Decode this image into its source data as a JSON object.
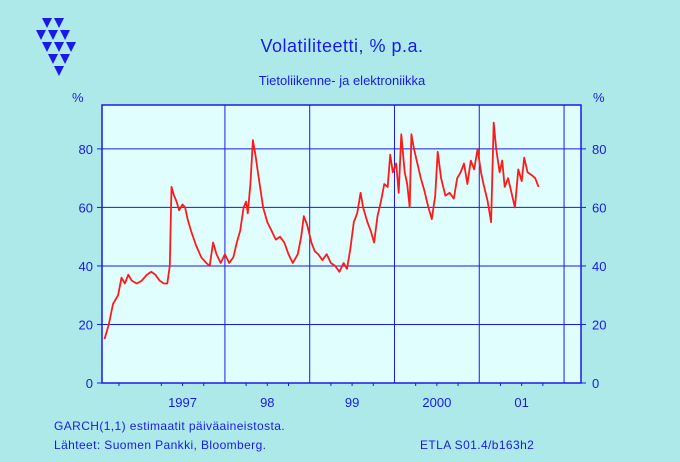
{
  "chart_data": {
    "type": "line",
    "title": "Volatiliteetti,  %  p.a.",
    "subtitle": "Tietoliikenne- ja elektroniikka",
    "y_unit_left": "%",
    "y_unit_right": "%",
    "ylim": [
      0,
      95
    ],
    "yticks": [
      "0",
      "20",
      "40",
      "60",
      "80"
    ],
    "xlim": [
      1996.55,
      2002.2
    ],
    "xtick_labels": [
      "1997",
      "98",
      "99",
      "2000",
      "01"
    ],
    "grid": true,
    "series": [
      {
        "name": "",
        "color": "#ff1a1a",
        "points": [
          [
            1996.58,
            15
          ],
          [
            1996.63,
            20
          ],
          [
            1996.68,
            27
          ],
          [
            1996.74,
            30
          ],
          [
            1996.78,
            36
          ],
          [
            1996.82,
            34
          ],
          [
            1996.86,
            37
          ],
          [
            1996.9,
            35
          ],
          [
            1996.96,
            34
          ],
          [
            1997.02,
            35
          ],
          [
            1997.08,
            37
          ],
          [
            1997.13,
            38
          ],
          [
            1997.18,
            37
          ],
          [
            1997.23,
            35
          ],
          [
            1997.28,
            34
          ],
          [
            1997.32,
            34
          ],
          [
            1997.35,
            40
          ],
          [
            1997.37,
            67
          ],
          [
            1997.4,
            64
          ],
          [
            1997.43,
            62
          ],
          [
            1997.46,
            59
          ],
          [
            1997.5,
            61
          ],
          [
            1997.53,
            60
          ],
          [
            1997.56,
            56
          ],
          [
            1997.6,
            52
          ],
          [
            1997.66,
            47
          ],
          [
            1997.72,
            43
          ],
          [
            1997.78,
            41
          ],
          [
            1997.82,
            40
          ],
          [
            1997.86,
            48
          ],
          [
            1997.9,
            44
          ],
          [
            1997.95,
            41
          ],
          [
            1998.0,
            44
          ],
          [
            1998.05,
            41
          ],
          [
            1998.1,
            43
          ],
          [
            1998.14,
            48
          ],
          [
            1998.18,
            52
          ],
          [
            1998.22,
            60
          ],
          [
            1998.25,
            62
          ],
          [
            1998.27,
            58
          ],
          [
            1998.3,
            68
          ],
          [
            1998.33,
            83
          ],
          [
            1998.36,
            78
          ],
          [
            1998.4,
            70
          ],
          [
            1998.45,
            60
          ],
          [
            1998.5,
            55
          ],
          [
            1998.55,
            52
          ],
          [
            1998.6,
            49
          ],
          [
            1998.65,
            50
          ],
          [
            1998.7,
            48
          ],
          [
            1998.75,
            44
          ],
          [
            1998.8,
            41
          ],
          [
            1998.86,
            44
          ],
          [
            1998.9,
            50
          ],
          [
            1998.93,
            57
          ],
          [
            1998.97,
            54
          ],
          [
            1999.02,
            48
          ],
          [
            1999.06,
            45
          ],
          [
            1999.1,
            44
          ],
          [
            1999.15,
            42
          ],
          [
            1999.2,
            44
          ],
          [
            1999.25,
            41
          ],
          [
            1999.3,
            40
          ],
          [
            1999.35,
            38
          ],
          [
            1999.4,
            41
          ],
          [
            1999.44,
            39
          ],
          [
            1999.48,
            46
          ],
          [
            1999.52,
            55
          ],
          [
            1999.56,
            58
          ],
          [
            1999.6,
            65
          ],
          [
            1999.63,
            60
          ],
          [
            1999.68,
            55
          ],
          [
            1999.72,
            52
          ],
          [
            1999.76,
            48
          ],
          [
            1999.8,
            57
          ],
          [
            1999.84,
            62
          ],
          [
            1999.88,
            68
          ],
          [
            1999.92,
            67
          ],
          [
            1999.95,
            78
          ],
          [
            1999.98,
            72
          ],
          [
            2000.02,
            75
          ],
          [
            2000.05,
            65
          ],
          [
            2000.08,
            85
          ],
          [
            2000.12,
            72
          ],
          [
            2000.15,
            68
          ],
          [
            2000.18,
            60
          ],
          [
            2000.2,
            85
          ],
          [
            2000.23,
            80
          ],
          [
            2000.27,
            75
          ],
          [
            2000.31,
            70
          ],
          [
            2000.35,
            66
          ],
          [
            2000.4,
            60
          ],
          [
            2000.44,
            56
          ],
          [
            2000.48,
            64
          ],
          [
            2000.51,
            79
          ],
          [
            2000.55,
            70
          ],
          [
            2000.6,
            64
          ],
          [
            2000.65,
            65
          ],
          [
            2000.7,
            63
          ],
          [
            2000.74,
            70
          ],
          [
            2000.78,
            72
          ],
          [
            2000.82,
            75
          ],
          [
            2000.86,
            68
          ],
          [
            2000.9,
            76
          ],
          [
            2000.94,
            73
          ],
          [
            2000.98,
            80
          ],
          [
            2001.02,
            72
          ],
          [
            2001.05,
            68
          ],
          [
            2001.1,
            62
          ],
          [
            2001.14,
            55
          ],
          [
            2001.17,
            89
          ],
          [
            2001.2,
            80
          ],
          [
            2001.24,
            72
          ],
          [
            2001.27,
            76
          ],
          [
            2001.3,
            67
          ],
          [
            2001.34,
            70
          ],
          [
            2001.38,
            65
          ],
          [
            2001.42,
            60
          ],
          [
            2001.46,
            73
          ],
          [
            2001.5,
            69
          ],
          [
            2001.53,
            77
          ],
          [
            2001.57,
            72
          ],
          [
            2001.62,
            71
          ],
          [
            2001.66,
            70
          ],
          [
            2001.7,
            67
          ]
        ]
      }
    ]
  },
  "notes": {
    "method": "GARCH(1,1) estimaatit päiväaineistosta.",
    "sources": "Lähteet:   Suomen Pankki, Bloomberg.",
    "code": "ETLA S01.4/b163h2"
  }
}
